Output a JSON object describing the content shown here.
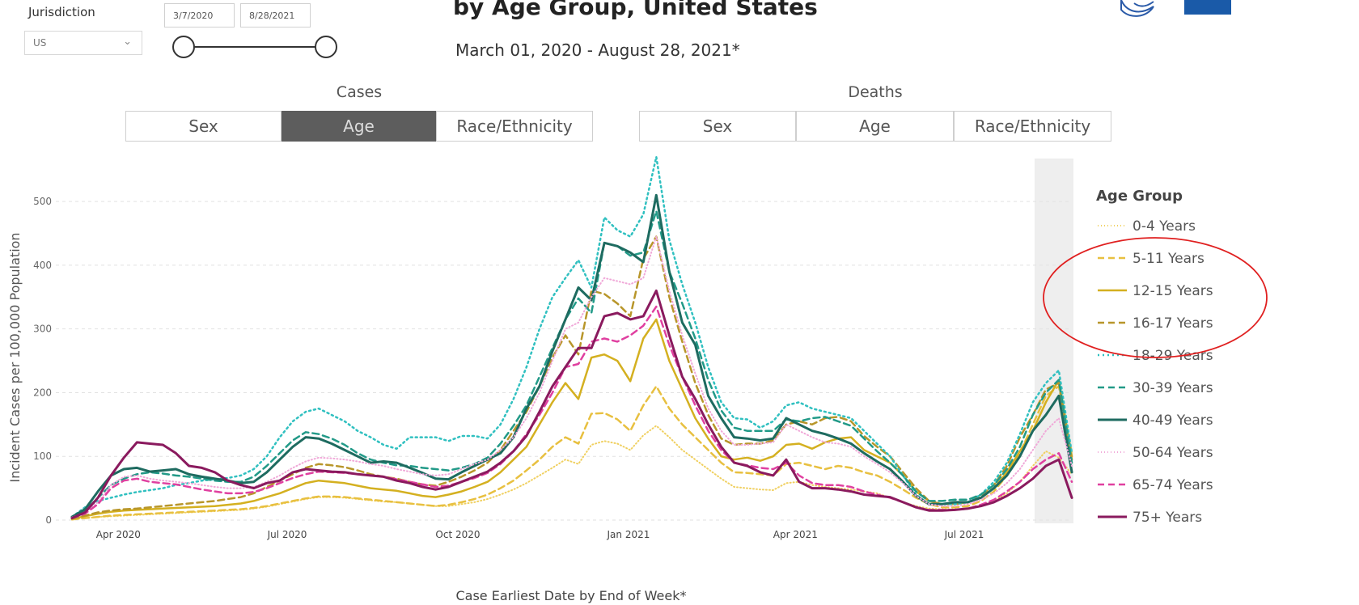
{
  "header": {
    "title": "by Age Group, United States",
    "subtitle": "March 01, 2020 - August 28, 2021*"
  },
  "filters": {
    "jurisdiction_label": "Jurisdiction",
    "jurisdiction_value": "US",
    "start_date": "3/7/2020",
    "end_date": "8/28/2021",
    "slider_range": [
      0,
      1
    ]
  },
  "tabs": {
    "cases_label": "Cases",
    "deaths_label": "Deaths",
    "cases": [
      "Sex",
      "Age",
      "Race/Ethnicity"
    ],
    "deaths": [
      "Sex",
      "Age",
      "Race/Ethnicity"
    ],
    "active": "cases-age"
  },
  "colors": {
    "active_tab": "#5d5d5d",
    "annotation_circle": "#e02020"
  },
  "chart_data": {
    "type": "line",
    "xlabel": "Case Earliest Date by End of Week*",
    "ylabel": "Incident Cases per 100,000 Population",
    "ylim": [
      0,
      570
    ],
    "yticks": [
      0,
      100,
      200,
      300,
      400,
      500
    ],
    "xtick_labels": [
      "Apr 2020",
      "Jul 2020",
      "Oct 2020",
      "Jan 2021",
      "Apr 2021",
      "Jul 2021"
    ],
    "xtick_dates": [
      "2020-04-01",
      "2020-07-01",
      "2020-10-01",
      "2021-01-01",
      "2021-04-01",
      "2021-07-01"
    ],
    "grid": "horizontal dashed",
    "highlight_band": [
      "2021-08-14",
      "2021-08-28"
    ],
    "legend": {
      "title": "Age Group",
      "placement": "right"
    },
    "x": [
      "2020-03-07",
      "2020-03-14",
      "2020-03-21",
      "2020-03-28",
      "2020-04-04",
      "2020-04-11",
      "2020-04-18",
      "2020-04-25",
      "2020-05-02",
      "2020-05-09",
      "2020-05-16",
      "2020-05-23",
      "2020-05-30",
      "2020-06-06",
      "2020-06-13",
      "2020-06-20",
      "2020-06-27",
      "2020-07-04",
      "2020-07-11",
      "2020-07-18",
      "2020-07-25",
      "2020-08-01",
      "2020-08-08",
      "2020-08-15",
      "2020-08-22",
      "2020-08-29",
      "2020-09-05",
      "2020-09-12",
      "2020-09-19",
      "2020-09-26",
      "2020-10-03",
      "2020-10-10",
      "2020-10-17",
      "2020-10-24",
      "2020-10-31",
      "2020-11-07",
      "2020-11-14",
      "2020-11-21",
      "2020-11-28",
      "2020-12-05",
      "2020-12-12",
      "2020-12-19",
      "2020-12-26",
      "2021-01-02",
      "2021-01-09",
      "2021-01-16",
      "2021-01-23",
      "2021-01-30",
      "2021-02-06",
      "2021-02-13",
      "2021-02-20",
      "2021-02-27",
      "2021-03-06",
      "2021-03-13",
      "2021-03-20",
      "2021-03-27",
      "2021-04-03",
      "2021-04-10",
      "2021-04-17",
      "2021-04-24",
      "2021-05-01",
      "2021-05-08",
      "2021-05-15",
      "2021-05-22",
      "2021-05-29",
      "2021-06-05",
      "2021-06-12",
      "2021-06-19",
      "2021-06-26",
      "2021-07-03",
      "2021-07-10",
      "2021-07-17",
      "2021-07-24",
      "2021-07-31",
      "2021-08-07",
      "2021-08-14",
      "2021-08-21",
      "2021-08-28"
    ],
    "series": [
      {
        "name": "0-4 Years",
        "color": "#f0d060",
        "dash": "1,3",
        "width": 2,
        "values": [
          1,
          3,
          5,
          6,
          7,
          8,
          9,
          10,
          11,
          12,
          13,
          14,
          15,
          16,
          18,
          21,
          25,
          29,
          33,
          36,
          36,
          35,
          33,
          31,
          29,
          28,
          26,
          24,
          22,
          22,
          25,
          28,
          33,
          40,
          48,
          58,
          70,
          82,
          95,
          88,
          118,
          124,
          120,
          110,
          133,
          148,
          130,
          110,
          95,
          80,
          65,
          52,
          50,
          48,
          47,
          58,
          60,
          55,
          52,
          50,
          48,
          45,
          42,
          35,
          28,
          22,
          18,
          17,
          17,
          18,
          22,
          30,
          42,
          60,
          85,
          108,
          98,
          72
        ]
      },
      {
        "name": "5-11 Years",
        "color": "#e8c040",
        "dash": "8,5",
        "width": 2.5,
        "values": [
          1,
          3,
          5,
          7,
          8,
          9,
          10,
          11,
          12,
          13,
          14,
          15,
          16,
          17,
          19,
          22,
          26,
          30,
          34,
          37,
          37,
          36,
          34,
          32,
          30,
          28,
          26,
          24,
          22,
          24,
          28,
          33,
          40,
          50,
          62,
          78,
          95,
          115,
          130,
          120,
          167,
          168,
          158,
          140,
          180,
          210,
          175,
          150,
          130,
          110,
          90,
          75,
          74,
          72,
          70,
          88,
          90,
          85,
          80,
          85,
          82,
          75,
          70,
          60,
          48,
          35,
          25,
          20,
          20,
          22,
          30,
          45,
          70,
          105,
          150,
          195,
          210,
          105
        ]
      },
      {
        "name": "12-15 Years",
        "color": "#d4b020",
        "dash": "",
        "width": 2.5,
        "values": [
          2,
          6,
          10,
          13,
          15,
          16,
          17,
          18,
          19,
          20,
          21,
          22,
          24,
          26,
          30,
          36,
          42,
          50,
          58,
          62,
          60,
          58,
          54,
          50,
          48,
          46,
          42,
          38,
          36,
          40,
          45,
          52,
          60,
          75,
          95,
          115,
          150,
          185,
          215,
          190,
          255,
          260,
          250,
          218,
          285,
          315,
          250,
          205,
          160,
          128,
          100,
          95,
          98,
          93,
          100,
          118,
          120,
          112,
          122,
          128,
          130,
          110,
          100,
          90,
          70,
          45,
          30,
          25,
          25,
          28,
          35,
          50,
          75,
          108,
          140,
          185,
          220,
          100
        ]
      },
      {
        "name": "16-17 Years",
        "color": "#b8962a",
        "dash": "8,5",
        "width": 2.5,
        "values": [
          2,
          7,
          12,
          15,
          17,
          18,
          20,
          22,
          24,
          26,
          28,
          30,
          33,
          36,
          42,
          52,
          62,
          72,
          82,
          88,
          86,
          83,
          78,
          72,
          68,
          65,
          60,
          56,
          54,
          60,
          68,
          78,
          90,
          110,
          140,
          170,
          210,
          255,
          290,
          260,
          360,
          355,
          340,
          320,
          410,
          445,
          350,
          280,
          215,
          165,
          128,
          118,
          120,
          120,
          125,
          150,
          155,
          150,
          160,
          162,
          155,
          132,
          115,
          100,
          75,
          50,
          30,
          25,
          25,
          28,
          38,
          55,
          85,
          130,
          165,
          205,
          215,
          95
        ]
      },
      {
        "name": "18-29 Years",
        "color": "#30c0c0",
        "dash": "2,4",
        "width": 2.5,
        "values": [
          5,
          20,
          30,
          35,
          40,
          44,
          47,
          50,
          55,
          58,
          62,
          64,
          66,
          70,
          80,
          100,
          130,
          155,
          170,
          175,
          165,
          155,
          140,
          130,
          118,
          112,
          130,
          130,
          130,
          124,
          132,
          132,
          128,
          150,
          190,
          240,
          300,
          350,
          380,
          408,
          365,
          475,
          455,
          445,
          480,
          570,
          440,
          370,
          310,
          240,
          185,
          160,
          158,
          145,
          155,
          180,
          185,
          175,
          170,
          165,
          160,
          140,
          120,
          100,
          70,
          40,
          25,
          25,
          25,
          28,
          40,
          60,
          90,
          135,
          185,
          215,
          235,
          105
        ]
      },
      {
        "name": "30-39 Years",
        "color": "#229a88",
        "dash": "8,5",
        "width": 2.5,
        "values": [
          4,
          15,
          35,
          55,
          65,
          72,
          75,
          73,
          70,
          68,
          65,
          62,
          60,
          60,
          68,
          85,
          105,
          125,
          138,
          135,
          128,
          118,
          105,
          95,
          90,
          86,
          85,
          82,
          80,
          78,
          82,
          88,
          98,
          120,
          148,
          180,
          225,
          270,
          315,
          348,
          325,
          435,
          430,
          415,
          420,
          485,
          390,
          340,
          285,
          220,
          172,
          145,
          140,
          140,
          140,
          158,
          155,
          160,
          162,
          155,
          148,
          128,
          108,
          90,
          70,
          45,
          30,
          30,
          32,
          32,
          40,
          55,
          80,
          115,
          165,
          200,
          220,
          90
        ]
      },
      {
        "name": "40-49 Years",
        "color": "#1e6b60",
        "dash": "",
        "width": 3,
        "values": [
          5,
          17,
          45,
          70,
          80,
          82,
          76,
          78,
          80,
          72,
          68,
          65,
          62,
          58,
          60,
          75,
          95,
          115,
          130,
          128,
          120,
          110,
          100,
          90,
          92,
          90,
          82,
          74,
          65,
          64,
          75,
          85,
          95,
          105,
          130,
          175,
          210,
          265,
          315,
          365,
          345,
          435,
          430,
          420,
          405,
          510,
          390,
          310,
          275,
          195,
          160,
          130,
          128,
          125,
          128,
          160,
          150,
          140,
          135,
          128,
          120,
          105,
          92,
          80,
          60,
          38,
          25,
          25,
          28,
          28,
          35,
          50,
          70,
          100,
          140,
          165,
          195,
          75
        ]
      },
      {
        "name": "50-64 Years",
        "color": "#f0a8d8",
        "dash": "1,3",
        "width": 2,
        "values": [
          4,
          12,
          28,
          55,
          68,
          70,
          65,
          62,
          60,
          58,
          55,
          52,
          50,
          50,
          52,
          60,
          70,
          82,
          92,
          98,
          97,
          95,
          92,
          88,
          85,
          80,
          76,
          72,
          70,
          72,
          80,
          88,
          95,
          110,
          130,
          160,
          200,
          250,
          300,
          310,
          350,
          380,
          375,
          370,
          380,
          445,
          360,
          290,
          230,
          175,
          140,
          118,
          118,
          120,
          122,
          150,
          140,
          130,
          122,
          120,
          115,
          100,
          88,
          75,
          58,
          38,
          25,
          22,
          22,
          25,
          32,
          42,
          58,
          80,
          110,
          140,
          160,
          85
        ]
      },
      {
        "name": "65-74 Years",
        "color": "#e040a0",
        "dash": "8,5",
        "width": 2.5,
        "values": [
          3,
          10,
          25,
          50,
          62,
          65,
          60,
          58,
          56,
          52,
          48,
          45,
          42,
          42,
          44,
          50,
          58,
          66,
          72,
          76,
          75,
          74,
          72,
          70,
          68,
          64,
          60,
          56,
          52,
          54,
          60,
          66,
          74,
          88,
          108,
          135,
          165,
          200,
          240,
          245,
          280,
          285,
          280,
          290,
          305,
          335,
          275,
          225,
          180,
          140,
          110,
          90,
          86,
          82,
          80,
          90,
          70,
          58,
          55,
          55,
          52,
          45,
          40,
          35,
          28,
          20,
          16,
          16,
          16,
          18,
          24,
          32,
          45,
          60,
          80,
          95,
          105,
          60
        ]
      },
      {
        "name": "75+ Years",
        "color": "#8a1a5e",
        "dash": "",
        "width": 3,
        "values": [
          3,
          12,
          35,
          70,
          98,
          122,
          120,
          118,
          105,
          85,
          82,
          75,
          62,
          55,
          50,
          58,
          62,
          75,
          80,
          78,
          76,
          75,
          72,
          70,
          68,
          62,
          58,
          52,
          48,
          52,
          60,
          68,
          76,
          90,
          108,
          132,
          170,
          210,
          240,
          270,
          270,
          320,
          325,
          315,
          320,
          360,
          290,
          225,
          190,
          150,
          115,
          90,
          85,
          75,
          70,
          95,
          60,
          50,
          50,
          48,
          45,
          40,
          38,
          36,
          28,
          20,
          15,
          15,
          16,
          18,
          22,
          28,
          38,
          50,
          65,
          85,
          95,
          35
        ]
      }
    ]
  }
}
